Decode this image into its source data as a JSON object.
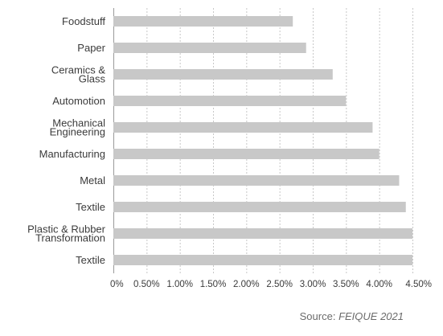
{
  "chart_data": {
    "type": "bar",
    "orientation": "horizontal",
    "categories": [
      [
        "Foodstuff"
      ],
      [
        "Paper"
      ],
      [
        "Ceramics &",
        "Glass"
      ],
      [
        "Automotion"
      ],
      [
        "Mechanical",
        "Engineering"
      ],
      [
        "Manufacturing"
      ],
      [
        "Metal"
      ],
      [
        "Textile"
      ],
      [
        "Plastic & Rubber",
        "Transformation"
      ],
      [
        "Textile"
      ]
    ],
    "values": [
      2.7,
      2.9,
      3.3,
      3.5,
      3.9,
      4.0,
      4.3,
      4.4,
      4.5,
      4.5
    ],
    "xlim": [
      0,
      4.5
    ],
    "xticks": [
      "0%",
      "0.50%",
      "1.00%",
      "1.50%",
      "2.00%",
      "2.50%",
      "3.00%",
      "3.50%",
      "4.00%",
      "4.50%"
    ],
    "grid": "vertical dashed",
    "bar_color": "#c8c8c8",
    "title": "",
    "xlabel": "",
    "ylabel": ""
  },
  "source": {
    "prefix": "Source: ",
    "name": "FEIQUE 2021"
  }
}
